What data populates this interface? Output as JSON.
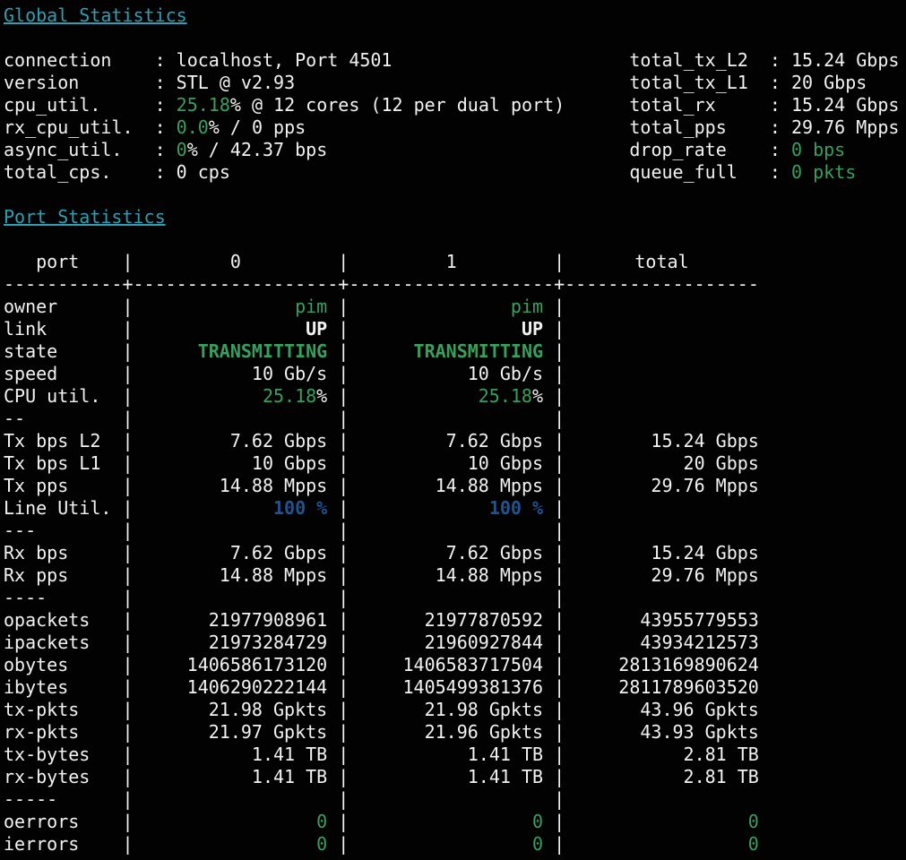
{
  "colors": {
    "background": "#020202",
    "text": "#f2f2f2",
    "title_teal": "#2f9fb4",
    "accent_green": "#38a05f",
    "util_blue": "#1f5394"
  },
  "colon": ": ",
  "global": {
    "title": "Global Statistics",
    "left": [
      {
        "label": "connection",
        "value": [
          {
            "t": "localhost, Port 4501"
          }
        ]
      },
      {
        "label": "version",
        "value": [
          {
            "t": "STL @ v2.93"
          }
        ]
      },
      {
        "label": "cpu_util.",
        "value": [
          {
            "t": "25.18",
            "c": "green"
          },
          {
            "t": "% @ 12 cores (12 per dual port)"
          }
        ]
      },
      {
        "label": "rx_cpu_util.",
        "value": [
          {
            "t": "0.0",
            "c": "green"
          },
          {
            "t": "% / 0 pps"
          }
        ]
      },
      {
        "label": "async_util.",
        "value": [
          {
            "t": "0",
            "c": "green"
          },
          {
            "t": "% / 42.37 bps"
          }
        ]
      },
      {
        "label": "total_cps.",
        "value": [
          {
            "t": "0 cps"
          }
        ]
      }
    ],
    "right": [
      {
        "label": "total_tx_L2",
        "value": [
          {
            "t": "15.24 Gbps"
          }
        ]
      },
      {
        "label": "total_tx_L1",
        "value": [
          {
            "t": "20 Gbps"
          }
        ]
      },
      {
        "label": "total_rx",
        "value": [
          {
            "t": "15.24 Gbps"
          }
        ]
      },
      {
        "label": "total_pps",
        "value": [
          {
            "t": "29.76 Mpps"
          }
        ]
      },
      {
        "label": "drop_rate",
        "value": [
          {
            "t": "0 bps",
            "c": "green"
          }
        ]
      },
      {
        "label": "queue_full",
        "value": [
          {
            "t": "0 pkts",
            "c": "green"
          }
        ]
      }
    ]
  },
  "port_stats": {
    "title": "Port Statistics",
    "pipe": "|",
    "header": {
      "label": "   port",
      "col0": "0",
      "col1": "1",
      "total": "total"
    },
    "separator": "-----------+-------------------+-------------------+------------------",
    "rows": [
      {
        "label": "owner",
        "c0": [
          {
            "t": "pim",
            "c": "green"
          }
        ],
        "c1": [
          {
            "t": "pim",
            "c": "green"
          }
        ],
        "ct": []
      },
      {
        "label": "link",
        "c0": [
          {
            "t": "UP",
            "c": "bold"
          }
        ],
        "c1": [
          {
            "t": "UP",
            "c": "bold"
          }
        ],
        "ct": []
      },
      {
        "label": "state",
        "c0": [
          {
            "t": "TRANSMITTING",
            "c": "green bold"
          }
        ],
        "c1": [
          {
            "t": "TRANSMITTING",
            "c": "green bold"
          }
        ],
        "ct": []
      },
      {
        "label": "speed",
        "c0": [
          {
            "t": "10 Gb/s"
          }
        ],
        "c1": [
          {
            "t": "10 Gb/s"
          }
        ],
        "ct": []
      },
      {
        "label": "CPU util.",
        "c0": [
          {
            "t": "25.18",
            "c": "green"
          },
          {
            "t": "%"
          }
        ],
        "c1": [
          {
            "t": "25.18",
            "c": "green"
          },
          {
            "t": "%"
          }
        ],
        "ct": []
      },
      {
        "label": "--",
        "c0": [],
        "c1": [],
        "ct": []
      },
      {
        "label": "Tx bps L2",
        "c0": [
          {
            "t": "7.62 Gbps"
          }
        ],
        "c1": [
          {
            "t": "7.62 Gbps"
          }
        ],
        "ct": [
          {
            "t": "15.24 Gbps"
          }
        ]
      },
      {
        "label": "Tx bps L1",
        "c0": [
          {
            "t": "10 Gbps"
          }
        ],
        "c1": [
          {
            "t": "10 Gbps"
          }
        ],
        "ct": [
          {
            "t": "20 Gbps"
          }
        ]
      },
      {
        "label": "Tx pps",
        "c0": [
          {
            "t": "14.88 Mpps"
          }
        ],
        "c1": [
          {
            "t": "14.88 Mpps"
          }
        ],
        "ct": [
          {
            "t": "29.76 Mpps"
          }
        ]
      },
      {
        "label": "Line Util.",
        "c0": [
          {
            "t": "100 %",
            "c": "blue"
          }
        ],
        "c1": [
          {
            "t": "100 %",
            "c": "blue"
          }
        ],
        "ct": []
      },
      {
        "label": "---",
        "c0": [],
        "c1": [],
        "ct": []
      },
      {
        "label": "Rx bps",
        "c0": [
          {
            "t": "7.62 Gbps"
          }
        ],
        "c1": [
          {
            "t": "7.62 Gbps"
          }
        ],
        "ct": [
          {
            "t": "15.24 Gbps"
          }
        ]
      },
      {
        "label": "Rx pps",
        "c0": [
          {
            "t": "14.88 Mpps"
          }
        ],
        "c1": [
          {
            "t": "14.88 Mpps"
          }
        ],
        "ct": [
          {
            "t": "29.76 Mpps"
          }
        ]
      },
      {
        "label": "----",
        "c0": [],
        "c1": [],
        "ct": []
      },
      {
        "label": "opackets",
        "c0": [
          {
            "t": "21977908961"
          }
        ],
        "c1": [
          {
            "t": "21977870592"
          }
        ],
        "ct": [
          {
            "t": "43955779553"
          }
        ]
      },
      {
        "label": "ipackets",
        "c0": [
          {
            "t": "21973284729"
          }
        ],
        "c1": [
          {
            "t": "21960927844"
          }
        ],
        "ct": [
          {
            "t": "43934212573"
          }
        ]
      },
      {
        "label": "obytes",
        "c0": [
          {
            "t": "1406586173120"
          }
        ],
        "c1": [
          {
            "t": "1406583717504"
          }
        ],
        "ct": [
          {
            "t": "2813169890624"
          }
        ]
      },
      {
        "label": "ibytes",
        "c0": [
          {
            "t": "1406290222144"
          }
        ],
        "c1": [
          {
            "t": "1405499381376"
          }
        ],
        "ct": [
          {
            "t": "2811789603520"
          }
        ]
      },
      {
        "label": "tx-pkts",
        "c0": [
          {
            "t": "21.98 Gpkts"
          }
        ],
        "c1": [
          {
            "t": "21.98 Gpkts"
          }
        ],
        "ct": [
          {
            "t": "43.96 Gpkts"
          }
        ]
      },
      {
        "label": "rx-pkts",
        "c0": [
          {
            "t": "21.97 Gpkts"
          }
        ],
        "c1": [
          {
            "t": "21.96 Gpkts"
          }
        ],
        "ct": [
          {
            "t": "43.93 Gpkts"
          }
        ]
      },
      {
        "label": "tx-bytes",
        "c0": [
          {
            "t": "1.41 TB"
          }
        ],
        "c1": [
          {
            "t": "1.41 TB"
          }
        ],
        "ct": [
          {
            "t": "2.81 TB"
          }
        ]
      },
      {
        "label": "rx-bytes",
        "c0": [
          {
            "t": "1.41 TB"
          }
        ],
        "c1": [
          {
            "t": "1.41 TB"
          }
        ],
        "ct": [
          {
            "t": "2.81 TB"
          }
        ]
      },
      {
        "label": "-----",
        "c0": [],
        "c1": [],
        "ct": []
      },
      {
        "label": "oerrors",
        "c0": [
          {
            "t": "0",
            "c": "green"
          }
        ],
        "c1": [
          {
            "t": "0",
            "c": "green"
          }
        ],
        "ct": [
          {
            "t": "0",
            "c": "green"
          }
        ]
      },
      {
        "label": "ierrors",
        "c0": [
          {
            "t": "0",
            "c": "green"
          }
        ],
        "c1": [
          {
            "t": "0",
            "c": "green"
          }
        ],
        "ct": [
          {
            "t": "0",
            "c": "green"
          }
        ]
      }
    ]
  }
}
